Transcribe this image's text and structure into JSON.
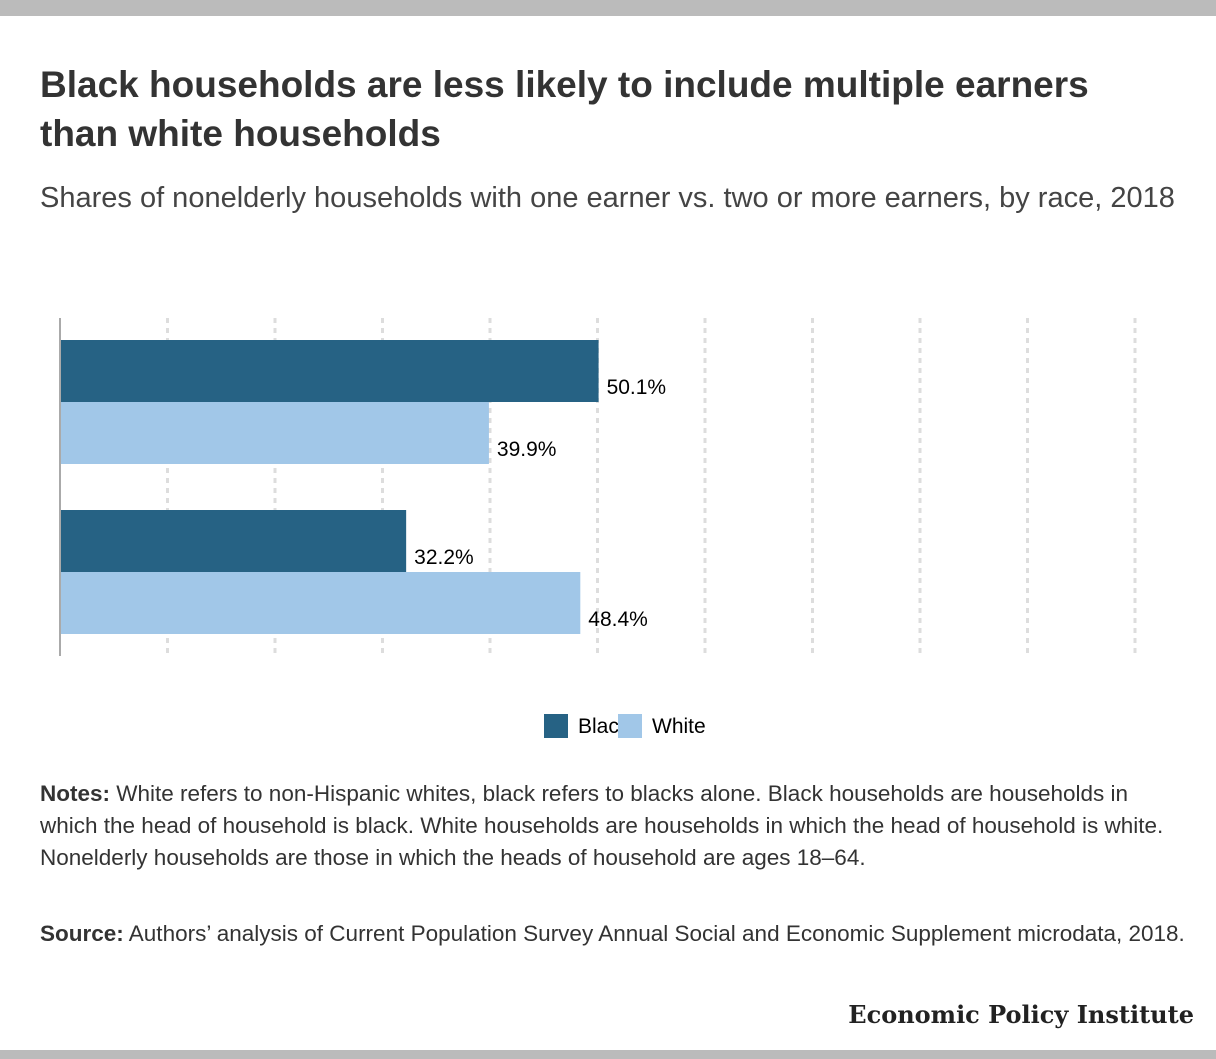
{
  "title": "Black households are less likely to include multiple earners than white households",
  "subtitle": "Shares of nonelderly households with one earner vs. two or more earners, by race, 2018",
  "legend": {
    "black_label": "Black",
    "white_label": "White"
  },
  "notes": {
    "label": "Notes:",
    "text": " White refers to non-Hispanic whites, black refers to blacks alone. Black households are households in which the head of household is black. White households are households in which the head of household is white. Nonelderly households are those in which the heads of household are ages 18–64."
  },
  "source": {
    "label": "Source:",
    "text": " Authors’ analysis of Current Population Survey Annual Social and Economic Supplement microdata, 2018."
  },
  "brand": "Economic Policy Institute",
  "colors": {
    "black": "#266284",
    "white": "#a1c7e8"
  },
  "chart_data": {
    "type": "bar",
    "orientation": "horizontal",
    "categories": [
      "",
      ""
    ],
    "series": [
      {
        "name": "Black",
        "values": [
          50.1,
          32.2
        ],
        "labels": [
          "50.1%",
          "32.2%"
        ]
      },
      {
        "name": "White",
        "values": [
          39.9,
          48.4
        ],
        "labels": [
          "39.9%",
          "48.4%"
        ]
      }
    ],
    "xlim": [
      0,
      100
    ],
    "grid": true,
    "legend_position": "bottom-center"
  }
}
